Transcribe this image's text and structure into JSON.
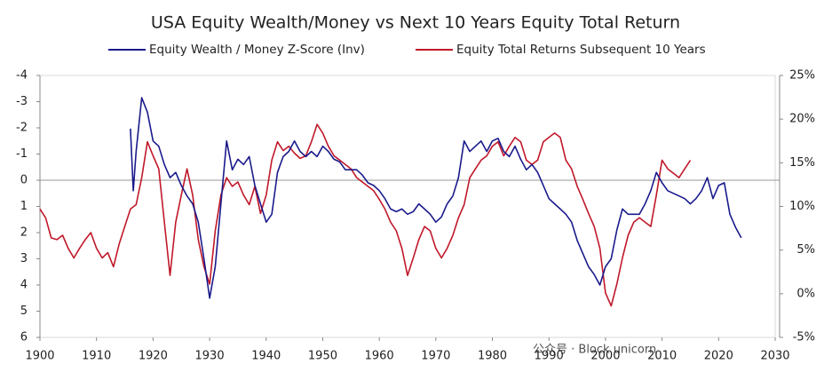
{
  "chart_data": {
    "type": "line",
    "title": "USA Equity Wealth/Money vs Next 10 Years Equity Total Return",
    "xlim": [
      1900,
      2030
    ],
    "xticks": [
      1900,
      1910,
      1920,
      1930,
      1940,
      1950,
      1960,
      1970,
      1980,
      1990,
      2000,
      2010,
      2020,
      2030
    ],
    "ylim": [
      6,
      -4
    ],
    "yticks": [
      -4,
      -3,
      -2,
      -1,
      0,
      1,
      2,
      3,
      4,
      5,
      6
    ],
    "y2lim": [
      -5,
      25
    ],
    "y2ticks": [
      {
        "value": 25,
        "label": "25%"
      },
      {
        "value": 20,
        "label": "20%"
      },
      {
        "value": 15,
        "label": "15%"
      },
      {
        "value": 10,
        "label": "10%"
      },
      {
        "value": 5,
        "label": "5%"
      },
      {
        "value": 0,
        "label": "0%"
      },
      {
        "value": -5,
        "label": "-5%"
      }
    ],
    "legend": "top",
    "watermark": "公众号 · Block unicorn",
    "series": [
      {
        "name": "Equity Wealth / Money Z-Score (Inv)",
        "color": "#1a1a8c",
        "x": [
          1916,
          1916.5,
          1917,
          1918,
          1919,
          1920,
          1921,
          1922,
          1923,
          1924,
          1925,
          1926,
          1927,
          1928,
          1929,
          1930,
          1931,
          1932,
          1933,
          1934,
          1935,
          1936,
          1937,
          1938,
          1939,
          1940,
          1941,
          1942,
          1943,
          1944,
          1945,
          1946,
          1947,
          1948,
          1949,
          1950,
          1951,
          1952,
          1953,
          1954,
          1955,
          1956,
          1957,
          1958,
          1959,
          1960,
          1961,
          1962,
          1963,
          1964,
          1965,
          1966,
          1967,
          1968,
          1969,
          1970,
          1971,
          1972,
          1973,
          1974,
          1975,
          1976,
          1977,
          1978,
          1979,
          1980,
          1981,
          1982,
          1983,
          1984,
          1985,
          1986,
          1987,
          1988,
          1989,
          1990,
          1991,
          1992,
          1993,
          1994,
          1995,
          1996,
          1997,
          1998,
          1999,
          2000,
          2001,
          2002,
          2003,
          2004,
          2005,
          2006,
          2007,
          2008,
          2009,
          2010,
          2011,
          2012,
          2013,
          2014,
          2015,
          2016,
          2017,
          2018,
          2019,
          2020,
          2021,
          2022,
          2023,
          2024
        ],
        "values": [
          -1.97,
          0.4,
          -1.1,
          -3.15,
          -2.6,
          -1.5,
          -1.3,
          -0.6,
          -0.1,
          -0.3,
          0.2,
          0.6,
          0.9,
          1.6,
          3.0,
          4.5,
          3.3,
          0.9,
          -1.5,
          -0.4,
          -0.8,
          -0.6,
          -0.9,
          0.2,
          0.9,
          1.6,
          1.3,
          -0.3,
          -0.9,
          -1.1,
          -1.5,
          -1.1,
          -0.9,
          -1.1,
          -0.9,
          -1.3,
          -1.1,
          -0.8,
          -0.7,
          -0.4,
          -0.4,
          -0.4,
          -0.2,
          0.1,
          0.2,
          0.4,
          0.7,
          1.1,
          1.2,
          1.1,
          1.3,
          1.2,
          0.9,
          1.1,
          1.3,
          1.6,
          1.4,
          0.9,
          0.6,
          -0.1,
          -1.5,
          -1.1,
          -1.3,
          -1.5,
          -1.1,
          -1.5,
          -1.6,
          -1.1,
          -0.9,
          -1.3,
          -0.8,
          -0.4,
          -0.6,
          -0.3,
          0.2,
          0.7,
          0.9,
          1.1,
          1.3,
          1.6,
          2.3,
          2.8,
          3.3,
          3.6,
          4.0,
          3.3,
          3.0,
          1.9,
          1.1,
          1.3,
          1.3,
          1.3,
          0.9,
          0.4,
          -0.3,
          0.1,
          0.4,
          0.5,
          0.6,
          0.7,
          0.9,
          0.7,
          0.4,
          -0.1,
          0.7,
          0.2,
          0.1,
          1.3,
          1.8,
          2.2
        ]
      },
      {
        "name": "Equity Total Returns Subsequent 10 Years",
        "color": "#c0182a",
        "axis": "y2",
        "x": [
          1900,
          1901,
          1902,
          1903,
          1904,
          1905,
          1906,
          1907,
          1908,
          1909,
          1910,
          1911,
          1912,
          1913,
          1914,
          1915,
          1916,
          1917,
          1918,
          1919,
          1920,
          1921,
          1922,
          1923,
          1924,
          1925,
          1926,
          1927,
          1928,
          1929,
          1930,
          1931,
          1932,
          1933,
          1934,
          1935,
          1936,
          1937,
          1938,
          1939,
          1940,
          1941,
          1942,
          1943,
          1944,
          1945,
          1946,
          1947,
          1948,
          1949,
          1950,
          1951,
          1952,
          1953,
          1954,
          1955,
          1956,
          1957,
          1958,
          1959,
          1960,
          1961,
          1962,
          1963,
          1964,
          1965,
          1966,
          1967,
          1968,
          1969,
          1970,
          1971,
          1972,
          1973,
          1974,
          1975,
          1976,
          1977,
          1978,
          1979,
          1980,
          1981,
          1982,
          1983,
          1984,
          1985,
          1986,
          1987,
          1988,
          1989,
          1990,
          1991,
          1992,
          1993,
          1994,
          1995,
          1996,
          1997,
          1998,
          1999,
          2000,
          2001,
          2002,
          2003,
          2004,
          2005,
          2006,
          2007,
          2008,
          2009,
          2010,
          2011,
          2012,
          2013,
          2014,
          2015
        ],
        "values": [
          9.7,
          8.7,
          6.4,
          6.2,
          6.7,
          5.2,
          4.1,
          5.2,
          6.2,
          7.0,
          5.2,
          4.1,
          4.7,
          3.1,
          5.7,
          7.7,
          9.7,
          10.2,
          13.3,
          17.4,
          15.8,
          14.3,
          8.2,
          2.1,
          8.2,
          11.3,
          14.3,
          11.3,
          6.2,
          3.1,
          1.1,
          7.2,
          11.3,
          13.3,
          12.3,
          12.8,
          11.3,
          10.2,
          12.3,
          9.2,
          11.3,
          15.3,
          17.4,
          16.4,
          16.9,
          16.1,
          15.5,
          15.8,
          17.4,
          19.4,
          18.4,
          16.9,
          15.8,
          15.3,
          14.8,
          14.3,
          13.3,
          12.8,
          12.3,
          11.8,
          10.8,
          9.7,
          8.2,
          7.2,
          5.2,
          2.1,
          4.1,
          6.2,
          7.7,
          7.2,
          5.2,
          4.1,
          5.2,
          6.7,
          8.7,
          10.2,
          13.3,
          14.3,
          15.3,
          15.8,
          16.9,
          17.4,
          15.8,
          16.9,
          17.9,
          17.4,
          15.3,
          14.8,
          15.3,
          17.4,
          17.9,
          18.4,
          17.9,
          15.3,
          14.3,
          12.3,
          10.8,
          9.2,
          7.7,
          5.2,
          0.1,
          -1.4,
          1.1,
          4.1,
          6.7,
          8.2,
          8.7,
          8.2,
          7.7,
          11.3,
          15.3,
          14.3,
          13.8,
          13.3,
          14.3,
          15.3
        ]
      }
    ]
  }
}
